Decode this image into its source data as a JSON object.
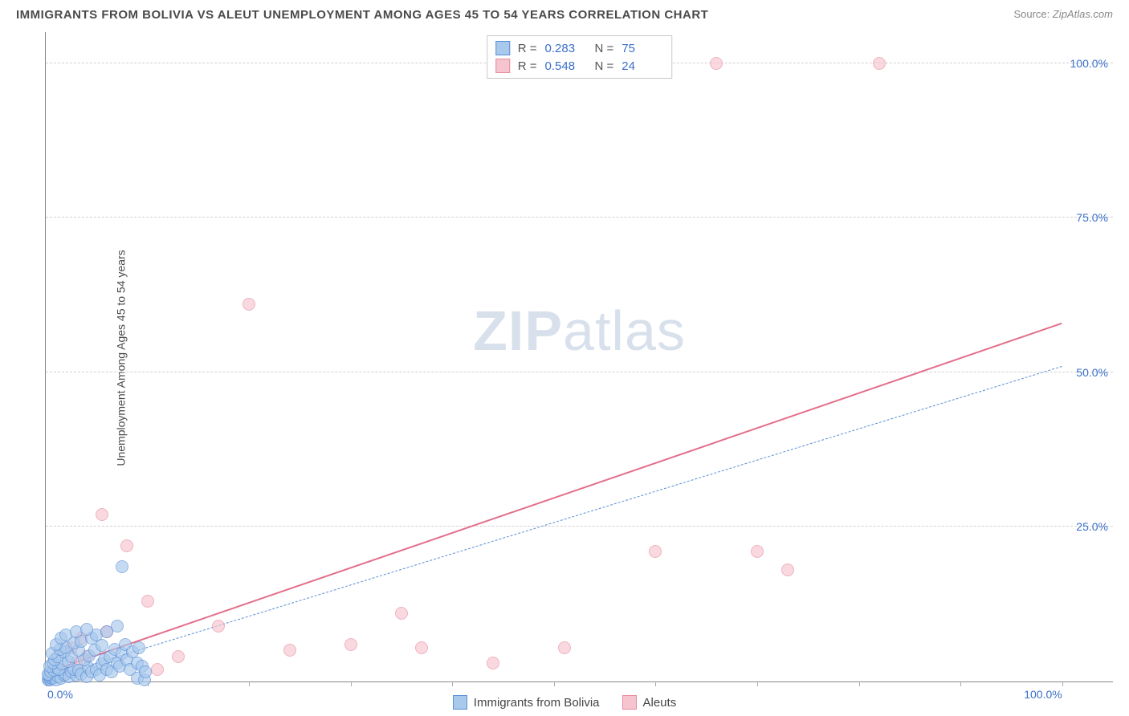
{
  "title": "IMMIGRANTS FROM BOLIVIA VS ALEUT UNEMPLOYMENT AMONG AGES 45 TO 54 YEARS CORRELATION CHART",
  "source_prefix": "Source: ",
  "source": "ZipAtlas.com",
  "y_axis_label": "Unemployment Among Ages 45 to 54 years",
  "watermark_bold": "ZIP",
  "watermark_rest": "atlas",
  "chart": {
    "type": "scatter",
    "xlim": [
      0,
      105
    ],
    "ylim": [
      0,
      105
    ],
    "x_ticks": [
      0,
      10,
      20,
      30,
      40,
      50,
      60,
      70,
      80,
      90,
      100
    ],
    "x_tick_labels": {
      "0": "0.0%",
      "100": "100.0%"
    },
    "y_ticks": [
      25,
      50,
      75,
      100
    ],
    "y_tick_labels": {
      "25": "25.0%",
      "50": "50.0%",
      "75": "75.0%",
      "100": "100.0%"
    },
    "grid_color": "#d0d0d0",
    "background_color": "#ffffff",
    "axis_color": "#888888",
    "tick_label_color": "#3b6fc9",
    "point_radius": 8,
    "point_border_width": 1.5
  },
  "series": [
    {
      "name": "Immigrants from Bolivia",
      "color_fill": "#a8c8ec",
      "color_stroke": "#5a8fd6",
      "r_value": "0.283",
      "n_value": "75",
      "trend": {
        "x1": 0,
        "y1": 0.5,
        "x2": 100,
        "y2": 51,
        "width": 1.5,
        "dash": "6,5",
        "color": "#5a8fd6"
      },
      "points": [
        [
          0.2,
          0.2
        ],
        [
          0.3,
          0.4
        ],
        [
          0.5,
          0.3
        ],
        [
          0.4,
          0.6
        ],
        [
          0.6,
          0.5
        ],
        [
          0.8,
          0.7
        ],
        [
          0.3,
          1.0
        ],
        [
          1.0,
          0.3
        ],
        [
          0.2,
          1.2
        ],
        [
          1.2,
          0.8
        ],
        [
          0.5,
          1.5
        ],
        [
          1.5,
          0.5
        ],
        [
          0.8,
          1.8
        ],
        [
          1.8,
          1.0
        ],
        [
          1.0,
          2.2
        ],
        [
          2.0,
          1.2
        ],
        [
          0.4,
          2.5
        ],
        [
          2.3,
          0.8
        ],
        [
          1.3,
          2.0
        ],
        [
          2.5,
          1.5
        ],
        [
          0.7,
          3.0
        ],
        [
          3.0,
          1.0
        ],
        [
          1.6,
          2.8
        ],
        [
          2.8,
          2.0
        ],
        [
          0.9,
          3.5
        ],
        [
          3.2,
          1.8
        ],
        [
          1.2,
          4.0
        ],
        [
          3.5,
          1.2
        ],
        [
          2.2,
          3.3
        ],
        [
          4.0,
          0.8
        ],
        [
          0.6,
          4.5
        ],
        [
          1.8,
          4.8
        ],
        [
          4.2,
          2.2
        ],
        [
          2.5,
          4.0
        ],
        [
          4.5,
          1.5
        ],
        [
          1.4,
          5.2
        ],
        [
          5.0,
          2.0
        ],
        [
          3.8,
          3.5
        ],
        [
          2.0,
          5.5
        ],
        [
          5.3,
          1.0
        ],
        [
          4.3,
          4.2
        ],
        [
          3.2,
          5.0
        ],
        [
          5.5,
          2.8
        ],
        [
          1.0,
          6.0
        ],
        [
          5.8,
          3.5
        ],
        [
          4.8,
          5.0
        ],
        [
          6.0,
          2.0
        ],
        [
          2.8,
          6.2
        ],
        [
          6.3,
          4.0
        ],
        [
          3.5,
          6.5
        ],
        [
          6.5,
          1.5
        ],
        [
          5.5,
          5.8
        ],
        [
          1.5,
          7.0
        ],
        [
          7.0,
          3.0
        ],
        [
          4.5,
          7.0
        ],
        [
          6.8,
          5.2
        ],
        [
          7.3,
          2.5
        ],
        [
          2.0,
          7.5
        ],
        [
          7.5,
          4.5
        ],
        [
          5.0,
          7.5
        ],
        [
          8.0,
          3.5
        ],
        [
          3.0,
          8.0
        ],
        [
          7.8,
          6.0
        ],
        [
          8.3,
          2.0
        ],
        [
          6.0,
          8.0
        ],
        [
          8.5,
          4.8
        ],
        [
          4.0,
          8.5
        ],
        [
          9.0,
          3.0
        ],
        [
          9.0,
          0.5
        ],
        [
          9.2,
          5.5
        ],
        [
          7.0,
          9.0
        ],
        [
          9.5,
          2.5
        ],
        [
          9.7,
          0.3
        ],
        [
          9.8,
          1.5
        ],
        [
          7.5,
          18.5
        ]
      ]
    },
    {
      "name": "Aleuts",
      "color_fill": "#f6c4ce",
      "color_stroke": "#e88ba0",
      "r_value": "0.548",
      "n_value": "24",
      "trend": {
        "x1": 0,
        "y1": 1.5,
        "x2": 100,
        "y2": 58,
        "width": 2.5,
        "dash": "none",
        "color": "#e36f8c"
      },
      "points": [
        [
          1.5,
          2.0
        ],
        [
          2.5,
          5.5
        ],
        [
          3.0,
          3.0
        ],
        [
          3.5,
          7.0
        ],
        [
          4.0,
          4.0
        ],
        [
          5.5,
          27.0
        ],
        [
          6.0,
          8.0
        ],
        [
          8.0,
          22.0
        ],
        [
          10.0,
          13.0
        ],
        [
          11.0,
          2.0
        ],
        [
          13.0,
          4.0
        ],
        [
          17.0,
          9.0
        ],
        [
          20.0,
          61.0
        ],
        [
          24.0,
          5.0
        ],
        [
          30.0,
          6.0
        ],
        [
          35.0,
          11.0
        ],
        [
          37.0,
          5.5
        ],
        [
          44.0,
          3.0
        ],
        [
          51.0,
          5.5
        ],
        [
          60.0,
          21.0
        ],
        [
          66.0,
          100.0
        ],
        [
          70.0,
          21.0
        ],
        [
          73.0,
          18.0
        ],
        [
          82.0,
          100.0
        ]
      ]
    }
  ],
  "legend_top": {
    "r_label": "R =",
    "n_label": "N ="
  },
  "legend_bottom": [
    {
      "label": "Immigrants from Bolivia",
      "fill": "#a8c8ec",
      "stroke": "#5a8fd6"
    },
    {
      "label": "Aleuts",
      "fill": "#f6c4ce",
      "stroke": "#e88ba0"
    }
  ]
}
